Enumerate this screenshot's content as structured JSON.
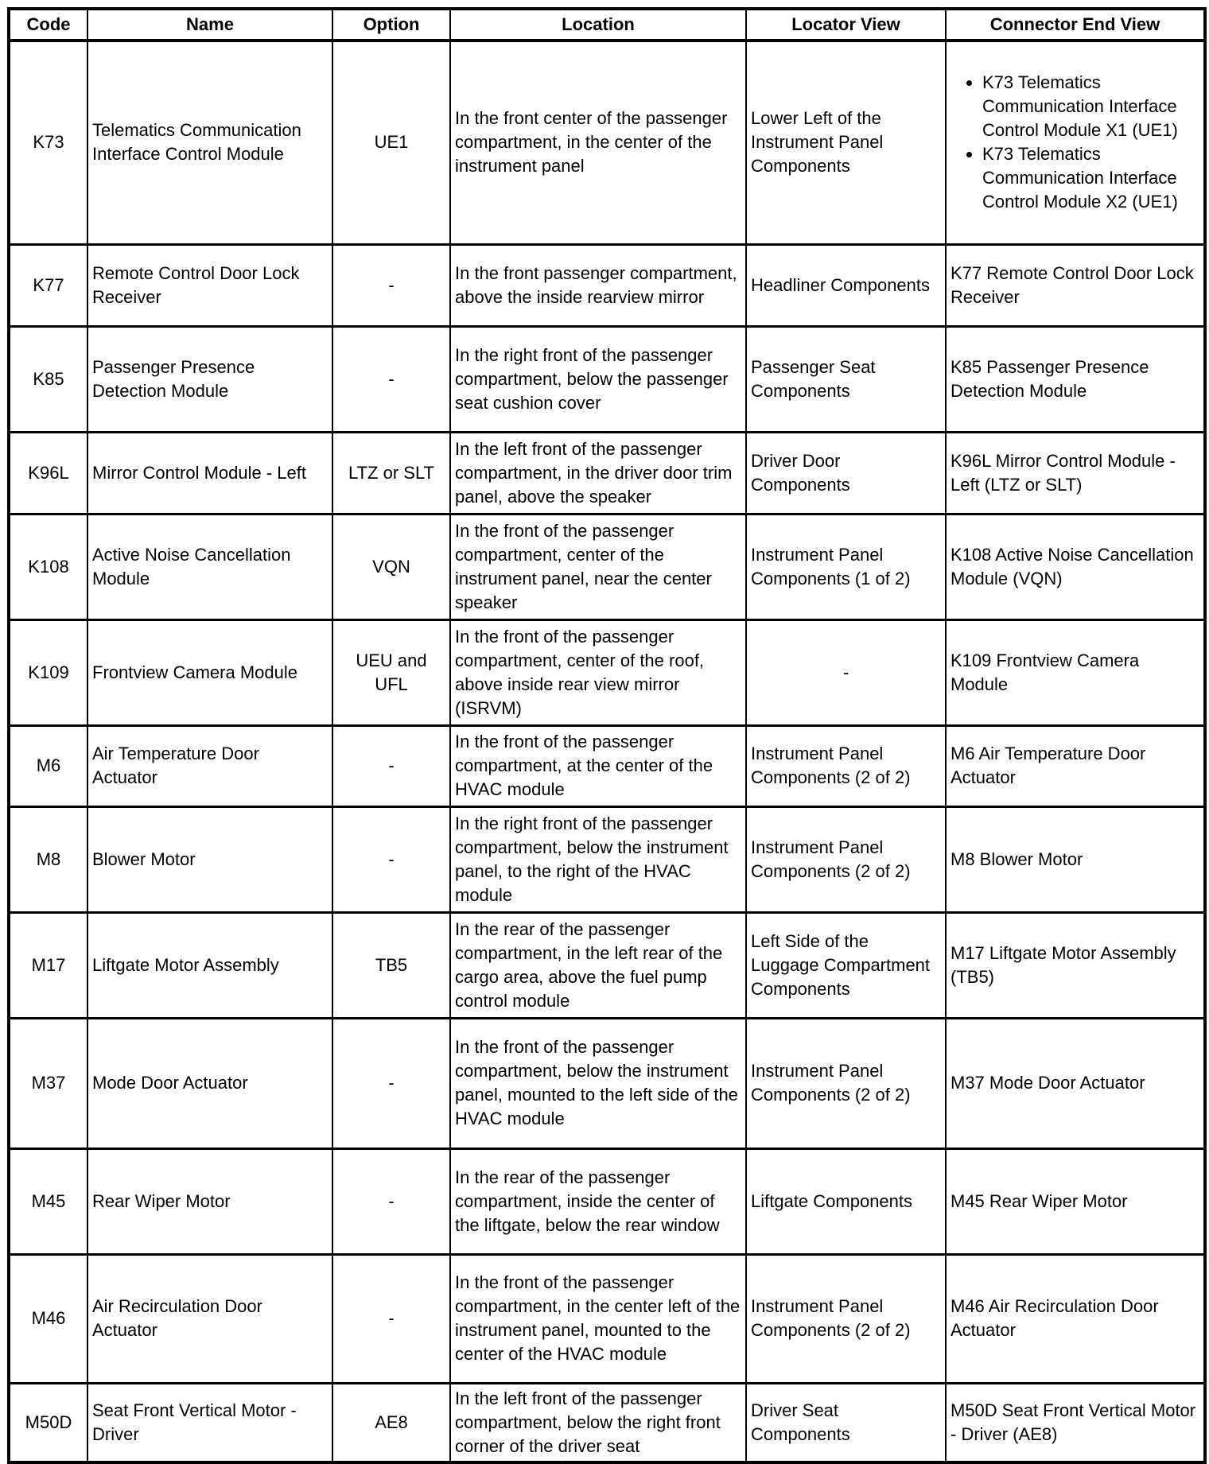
{
  "headers": [
    "Code",
    "Name",
    "Option",
    "Location",
    "Locator View",
    "Connector End View"
  ],
  "rows": [
    {
      "code": "K73",
      "name": "Telematics Communication Interface Control Module",
      "option": "UE1",
      "location": "In the front center of the passenger compartment, in the center of the instrument panel",
      "locator": "Lower Left of the Instrument Panel Components",
      "connector": [
        "K73 Telematics Communication Interface Control Module X1 (UE1)",
        "K73 Telematics Communication Interface Control Module X2 (UE1)"
      ]
    },
    {
      "code": "K77",
      "name": "Remote Control Door Lock Receiver",
      "option": "-",
      "location": "In the front passenger compartment, above the inside rearview mirror",
      "locator": "Headliner Components",
      "connector": "K77 Remote Control Door Lock Receiver"
    },
    {
      "code": "K85",
      "name": "Passenger Presence Detection Module",
      "option": "-",
      "location": "In the right front of the passenger compartment, below the passenger seat cushion cover",
      "locator": "Passenger Seat Components",
      "connector": "K85 Passenger Presence Detection Module"
    },
    {
      "code": "K96L",
      "name": "Mirror Control Module - Left",
      "option": "LTZ or SLT",
      "location": "In the left front of the passenger compartment, in the driver door trim panel, above the speaker",
      "locator": "Driver Door Components",
      "connector": "K96L Mirror Control Module - Left (LTZ or SLT)"
    },
    {
      "code": "K108",
      "name": "Active Noise Cancellation Module",
      "option": "VQN",
      "location": "In the front of the passenger compartment, center of the instrument panel, near the center speaker",
      "locator": "Instrument Panel Components (1 of 2)",
      "connector": "K108 Active Noise Cancellation Module (VQN)"
    },
    {
      "code": "K109",
      "name": "Frontview Camera Module",
      "option": "UEU and UFL",
      "location": "In the front of the passenger compartment, center of the roof, above inside rear view mirror (ISRVM)",
      "locator": "-",
      "connector": "K109 Frontview Camera Module"
    },
    {
      "code": "M6",
      "name": "Air Temperature Door Actuator",
      "option": "-",
      "location": "In the front of the passenger compartment, at the center of the HVAC module",
      "locator": "Instrument Panel Components (2 of 2)",
      "connector": "M6 Air Temperature Door Actuator"
    },
    {
      "code": "M8",
      "name": "Blower Motor",
      "option": "-",
      "location": "In the right front of the passenger compartment, below the instrument panel, to the right of the HVAC module",
      "locator": "Instrument Panel Components (2 of 2)",
      "connector": "M8 Blower Motor"
    },
    {
      "code": "M17",
      "name": "Liftgate Motor Assembly",
      "option": "TB5",
      "location": "In the rear of the passenger compartment, in the left rear of the cargo area, above the fuel pump control module",
      "locator": "Left Side of the Luggage Compartment Components",
      "connector": "M17 Liftgate Motor Assembly (TB5)"
    },
    {
      "code": "M37",
      "name": "Mode Door Actuator",
      "option": "-",
      "location": "In the front of the passenger compartment, below the instrument panel, mounted to the left side of the HVAC module",
      "locator": "Instrument Panel Components (2 of 2)",
      "connector": "M37 Mode Door Actuator"
    },
    {
      "code": "M45",
      "name": "Rear Wiper Motor",
      "option": "-",
      "location": "In the rear of the passenger compartment, inside the center of the liftgate, below the rear window",
      "locator": "Liftgate Components",
      "connector": "M45 Rear Wiper Motor"
    },
    {
      "code": "M46",
      "name": "Air Recirculation Door Actuator",
      "option": "-",
      "location": "In the front of the passenger compartment, in the center left of the instrument panel, mounted to the center of the HVAC module",
      "locator": "Instrument Panel Components (2 of 2)",
      "connector": "M46 Air Recirculation Door Actuator"
    },
    {
      "code": "M50D",
      "name": "Seat Front Vertical Motor - Driver",
      "option": "AE8",
      "location": "In the left front of the passenger compartment, below the right front corner of the driver seat",
      "locator": "Driver Seat Components",
      "connector": "M50D Seat Front Vertical Motor - Driver (AE8)"
    }
  ]
}
